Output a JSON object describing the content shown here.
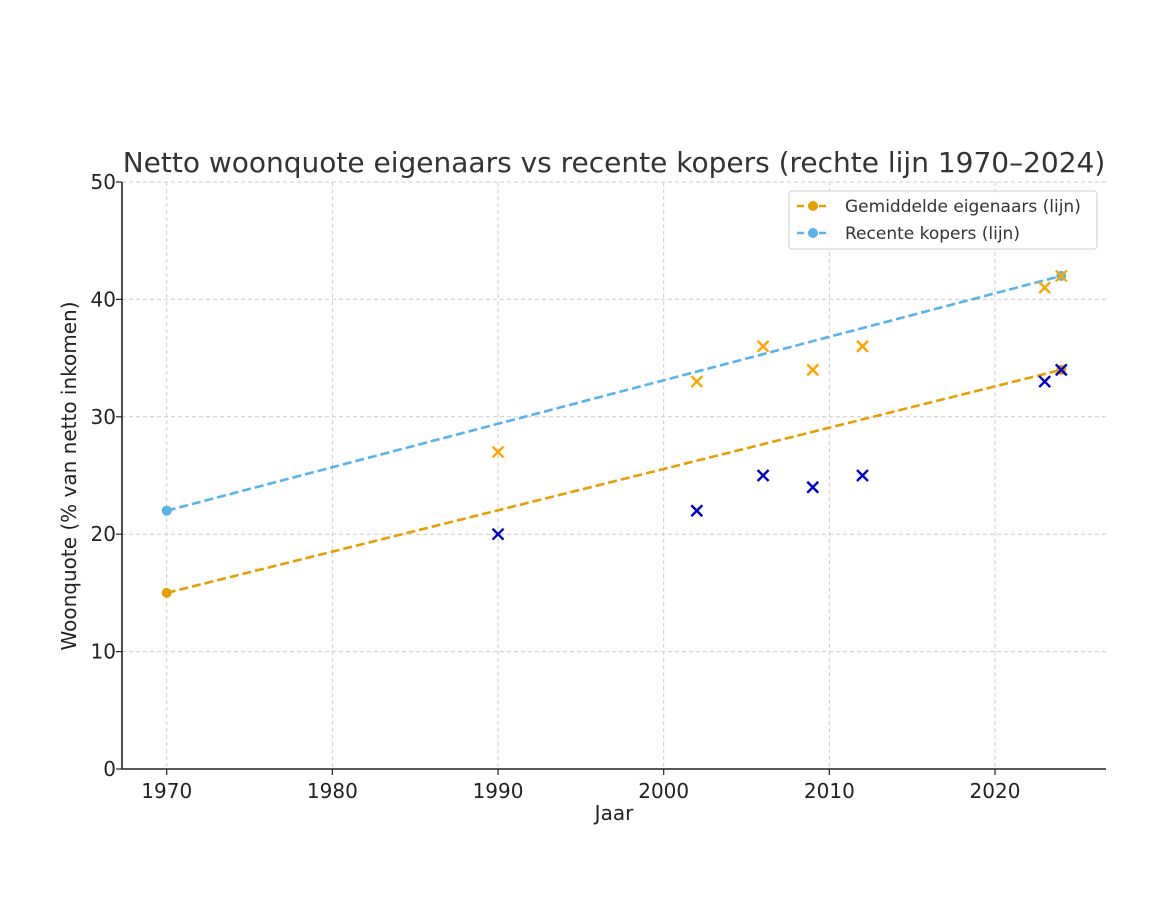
{
  "chart_data": {
    "type": "line",
    "title": "Netto woonquote eigenaars vs recente kopers (rechte lijn 1970–2024)",
    "xlabel": "Jaar",
    "ylabel": "Woonquote (% van netto inkomen)",
    "xlim": [
      1967.3,
      2026.7
    ],
    "ylim": [
      0,
      50
    ],
    "xticks": [
      1970,
      1980,
      1990,
      2000,
      2010,
      2020
    ],
    "yticks": [
      0,
      10,
      20,
      30,
      40,
      50
    ],
    "grid": true,
    "legend_position": "top-right",
    "series": [
      {
        "name": "Gemiddelde eigenaars (lijn)",
        "color": "#E69F00",
        "style": "dashed",
        "x": [
          1970,
          2024
        ],
        "y": [
          15,
          34
        ]
      },
      {
        "name": "Recente kopers (lijn)",
        "color": "#56B4E9",
        "style": "dashed",
        "x": [
          1970,
          2024
        ],
        "y": [
          22,
          42
        ]
      }
    ],
    "scatter": [
      {
        "group": "recente-kopers-punten",
        "color": "#FFA500",
        "marker": "x",
        "points": [
          [
            1990,
            27
          ],
          [
            2002,
            33
          ],
          [
            2006,
            36
          ],
          [
            2009,
            34
          ],
          [
            2012,
            36
          ],
          [
            2023,
            41
          ],
          [
            2024,
            42
          ]
        ]
      },
      {
        "group": "eigenaars-punten",
        "color": "#0000CC",
        "marker": "x",
        "points": [
          [
            1990,
            20
          ],
          [
            2002,
            22
          ],
          [
            2006,
            25
          ],
          [
            2009,
            24
          ],
          [
            2012,
            25
          ],
          [
            2023,
            33
          ],
          [
            2024,
            34
          ]
        ]
      }
    ]
  }
}
